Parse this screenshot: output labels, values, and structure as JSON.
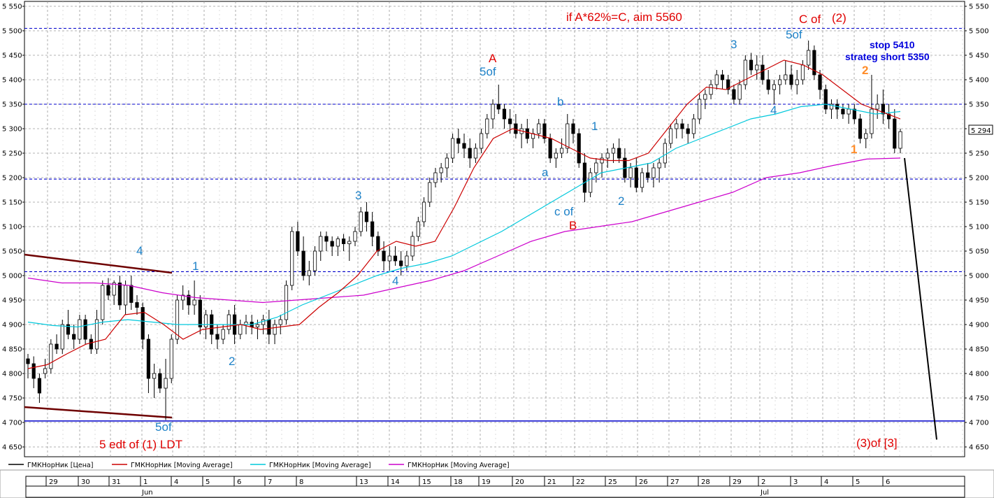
{
  "chart_data": {
    "type": "candlestick",
    "instrument": "ГМКНорНик",
    "last_price_label": "5 294",
    "ylim": [
      4630,
      5560
    ],
    "y_ticks": [
      "4 650",
      "4 700",
      "4 750",
      "4 800",
      "4 850",
      "4 900",
      "4 950",
      "5 000",
      "5 050",
      "5 100",
      "5 150",
      "5 200",
      "5 250",
      "5 300",
      "5 350",
      "5 400",
      "5 450",
      "5 500",
      "5 550"
    ],
    "x_dates": [
      "29",
      "30",
      "31",
      "1",
      "4",
      "5",
      "6",
      "7",
      "8",
      "13",
      "14",
      "15",
      "18",
      "19",
      "20",
      "21",
      "22",
      "25",
      "26",
      "27",
      "28",
      "29",
      "2",
      "3",
      "4",
      "5",
      "6"
    ],
    "month_labels": [
      "Jun",
      "Jul"
    ],
    "horizontal_levels": [
      {
        "value": 5505,
        "style": "dashed",
        "color": "#0000cc"
      },
      {
        "value": 5350,
        "style": "dashed",
        "color": "#0000cc"
      },
      {
        "value": 5197,
        "style": "dashed",
        "color": "#0000cc"
      },
      {
        "value": 5008,
        "style": "dashed",
        "color": "#0000cc"
      },
      {
        "value": 4703,
        "style": "solid",
        "color": "#0000cc"
      }
    ],
    "legend": [
      {
        "label": "ГМКНорНик [Цена]",
        "color": "#000000"
      },
      {
        "label": "ГМКНорНик [Moving Average]",
        "color": "#cc0000"
      },
      {
        "label": "ГМКНорНик [Moving Average]",
        "color": "#00c8dc"
      },
      {
        "label": "ГМКНорНик [Moving Average]",
        "color": "#cc00cc"
      }
    ],
    "annotations": [
      {
        "text": "if A*62%=C, aim 5560",
        "color": "#e00000"
      },
      {
        "text": "C of",
        "color": "#e00000"
      },
      {
        "text": "(2)",
        "color": "#e00000"
      },
      {
        "text": "stop 5410",
        "color": "#0000dd"
      },
      {
        "text": "strateg short 5350",
        "color": "#0000dd"
      },
      {
        "text": "A",
        "color": "#e00000"
      },
      {
        "text": "5of",
        "color": "#1e82c8"
      },
      {
        "text": "5of",
        "color": "#1e82c8"
      },
      {
        "text": "3",
        "color": "#1e82c8"
      },
      {
        "text": "3",
        "color": "#1e82c8"
      },
      {
        "text": "b",
        "color": "#1e82c8"
      },
      {
        "text": "1",
        "color": "#1e82c8"
      },
      {
        "text": "a",
        "color": "#1e82c8"
      },
      {
        "text": "c of",
        "color": "#1e82c8"
      },
      {
        "text": "B",
        "color": "#e00000"
      },
      {
        "text": "2",
        "color": "#1e82c8"
      },
      {
        "text": "4",
        "color": "#1e82c8"
      },
      {
        "text": "4",
        "color": "#1e82c8"
      },
      {
        "text": "4",
        "color": "#1e82c8"
      },
      {
        "text": "1",
        "color": "#1e82c8"
      },
      {
        "text": "2",
        "color": "#1e82c8"
      },
      {
        "text": "2",
        "color": "#ff8c28"
      },
      {
        "text": "1",
        "color": "#ff8c28"
      },
      {
        "text": "5of",
        "color": "#1e82c8"
      },
      {
        "text": "5 edt of (1) LDT",
        "color": "#e00000"
      },
      {
        "text": "(3)of [3]",
        "color": "#e00000"
      }
    ],
    "ma_red": [
      [
        0,
        4810
      ],
      [
        1,
        4818
      ],
      [
        2,
        4840
      ],
      [
        3,
        4860
      ],
      [
        4,
        4870
      ],
      [
        5,
        4920
      ],
      [
        6,
        4925
      ],
      [
        7,
        4900
      ],
      [
        8,
        4870
      ],
      [
        9,
        4890
      ],
      [
        10,
        4895
      ],
      [
        11,
        4900
      ],
      [
        12,
        4890
      ],
      [
        13,
        4895
      ],
      [
        14,
        4900
      ],
      [
        15,
        4935
      ],
      [
        16,
        4965
      ],
      [
        17,
        5000
      ],
      [
        18,
        5050
      ],
      [
        19,
        5070
      ],
      [
        20,
        5060
      ],
      [
        21,
        5070
      ],
      [
        22,
        5140
      ],
      [
        23,
        5220
      ],
      [
        24,
        5280
      ],
      [
        25,
        5300
      ],
      [
        26,
        5290
      ],
      [
        27,
        5280
      ],
      [
        28,
        5260
      ],
      [
        29,
        5240
      ],
      [
        30,
        5235
      ],
      [
        31,
        5235
      ],
      [
        32,
        5250
      ],
      [
        33,
        5300
      ],
      [
        34,
        5350
      ],
      [
        35,
        5385
      ],
      [
        36,
        5380
      ],
      [
        37,
        5400
      ],
      [
        38,
        5420
      ],
      [
        39,
        5440
      ],
      [
        40,
        5430
      ],
      [
        41,
        5410
      ],
      [
        42,
        5380
      ],
      [
        43,
        5350
      ],
      [
        44,
        5335
      ],
      [
        45,
        5320
      ]
    ],
    "ma_cyan": [
      [
        0,
        4905
      ],
      [
        1,
        4898
      ],
      [
        2,
        4895
      ],
      [
        3,
        4905
      ],
      [
        4,
        4910
      ],
      [
        5,
        4905
      ],
      [
        6,
        4900
      ],
      [
        7,
        4900
      ],
      [
        8,
        4900
      ],
      [
        9,
        4900
      ],
      [
        10,
        4915
      ],
      [
        11,
        4940
      ],
      [
        12,
        4960
      ],
      [
        13,
        4980
      ],
      [
        14,
        5000
      ],
      [
        15,
        5015
      ],
      [
        16,
        5025
      ],
      [
        17,
        5040
      ],
      [
        18,
        5065
      ],
      [
        19,
        5090
      ],
      [
        20,
        5120
      ],
      [
        21,
        5150
      ],
      [
        22,
        5180
      ],
      [
        23,
        5210
      ],
      [
        24,
        5220
      ],
      [
        25,
        5230
      ],
      [
        26,
        5260
      ],
      [
        27,
        5280
      ],
      [
        28,
        5300
      ],
      [
        29,
        5320
      ],
      [
        30,
        5330
      ],
      [
        31,
        5345
      ],
      [
        32,
        5350
      ],
      [
        33,
        5340
      ],
      [
        34,
        5330
      ],
      [
        35,
        5335
      ]
    ],
    "ma_mag": [
      [
        0,
        4995
      ],
      [
        1,
        4985
      ],
      [
        2,
        4985
      ],
      [
        3,
        4980
      ],
      [
        4,
        4965
      ],
      [
        5,
        4955
      ],
      [
        6,
        4950
      ],
      [
        7,
        4945
      ],
      [
        8,
        4950
      ],
      [
        9,
        4955
      ],
      [
        10,
        4960
      ],
      [
        11,
        4975
      ],
      [
        12,
        4990
      ],
      [
        13,
        5010
      ],
      [
        14,
        5040
      ],
      [
        15,
        5070
      ],
      [
        16,
        5090
      ],
      [
        17,
        5100
      ],
      [
        18,
        5110
      ],
      [
        19,
        5130
      ],
      [
        20,
        5150
      ],
      [
        21,
        5170
      ],
      [
        22,
        5200
      ],
      [
        23,
        5210
      ],
      [
        24,
        5225
      ],
      [
        25,
        5238
      ],
      [
        26,
        5240
      ]
    ],
    "candles": [
      [
        4830,
        4840,
        4790,
        4820
      ],
      [
        4820,
        4835,
        4770,
        4790
      ],
      [
        4790,
        4800,
        4740,
        4760
      ],
      [
        4800,
        4830,
        4790,
        4810
      ],
      [
        4810,
        4870,
        4800,
        4860
      ],
      [
        4860,
        4880,
        4840,
        4850
      ],
      [
        4850,
        4910,
        4840,
        4900
      ],
      [
        4900,
        4930,
        4870,
        4880
      ],
      [
        4880,
        4900,
        4850,
        4870
      ],
      [
        4870,
        4920,
        4860,
        4910
      ],
      [
        4910,
        4920,
        4860,
        4870
      ],
      [
        4870,
        4880,
        4840,
        4850
      ],
      [
        4850,
        4930,
        4840,
        4910
      ],
      [
        4910,
        4990,
        4900,
        4980
      ],
      [
        4980,
        4995,
        4950,
        4960
      ],
      [
        4960,
        4990,
        4940,
        4985
      ],
      [
        4985,
        5000,
        4930,
        4940
      ],
      [
        4940,
        4990,
        4920,
        4980
      ],
      [
        4980,
        5000,
        4930,
        4945
      ],
      [
        4945,
        4960,
        4920,
        4935
      ],
      [
        4935,
        4945,
        4850,
        4870
      ],
      [
        4870,
        4880,
        4760,
        4790
      ],
      [
        4790,
        4820,
        4750,
        4800
      ],
      [
        4800,
        4810,
        4760,
        4770
      ],
      [
        4770,
        4830,
        4705,
        4790
      ],
      [
        4790,
        4880,
        4780,
        4870
      ],
      [
        4870,
        4960,
        4860,
        4950
      ],
      [
        4950,
        4980,
        4930,
        4960
      ],
      [
        4960,
        4970,
        4920,
        4940
      ],
      [
        4940,
        4990,
        4920,
        4950
      ],
      [
        4950,
        4960,
        4880,
        4895
      ],
      [
        4895,
        4930,
        4870,
        4920
      ],
      [
        4920,
        4930,
        4860,
        4880
      ],
      [
        4880,
        4900,
        4850,
        4870
      ],
      [
        4870,
        4900,
        4860,
        4890
      ],
      [
        4890,
        4930,
        4880,
        4920
      ],
      [
        4920,
        4940,
        4860,
        4880
      ],
      [
        4880,
        4910,
        4870,
        4900
      ],
      [
        4900,
        4920,
        4880,
        4905
      ],
      [
        4905,
        4920,
        4880,
        4895
      ],
      [
        4895,
        4910,
        4870,
        4900
      ],
      [
        4900,
        4920,
        4880,
        4910
      ],
      [
        4910,
        4930,
        4860,
        4880
      ],
      [
        4880,
        4910,
        4860,
        4900
      ],
      [
        4900,
        4920,
        4880,
        4910
      ],
      [
        4910,
        4990,
        4900,
        4980
      ],
      [
        4980,
        5100,
        4970,
        5090
      ],
      [
        5090,
        5110,
        5040,
        5050
      ],
      [
        5050,
        5080,
        4990,
        5000
      ],
      [
        5000,
        5030,
        4980,
        5010
      ],
      [
        5010,
        5060,
        5000,
        5050
      ],
      [
        5050,
        5090,
        5030,
        5080
      ],
      [
        5080,
        5090,
        5050,
        5070
      ],
      [
        5070,
        5080,
        5040,
        5060
      ],
      [
        5060,
        5080,
        5040,
        5075
      ],
      [
        5075,
        5085,
        5050,
        5065
      ],
      [
        5065,
        5080,
        5030,
        5070
      ],
      [
        5070,
        5100,
        5060,
        5090
      ],
      [
        5090,
        5140,
        5080,
        5130
      ],
      [
        5130,
        5150,
        5090,
        5110
      ],
      [
        5110,
        5130,
        5060,
        5080
      ],
      [
        5080,
        5090,
        5040,
        5050
      ],
      [
        5050,
        5070,
        5010,
        5030
      ],
      [
        5030,
        5060,
        5010,
        5040
      ],
      [
        5040,
        5060,
        5020,
        5030
      ],
      [
        5030,
        5050,
        5000,
        5020
      ],
      [
        5020,
        5050,
        5010,
        5040
      ],
      [
        5040,
        5090,
        5030,
        5080
      ],
      [
        5080,
        5120,
        5070,
        5110
      ],
      [
        5110,
        5160,
        5100,
        5150
      ],
      [
        5150,
        5200,
        5140,
        5190
      ],
      [
        5190,
        5220,
        5180,
        5210
      ],
      [
        5210,
        5230,
        5190,
        5220
      ],
      [
        5220,
        5250,
        5200,
        5240
      ],
      [
        5240,
        5290,
        5230,
        5280
      ],
      [
        5280,
        5300,
        5250,
        5270
      ],
      [
        5270,
        5290,
        5240,
        5260
      ],
      [
        5260,
        5280,
        5220,
        5240
      ],
      [
        5240,
        5270,
        5230,
        5260
      ],
      [
        5260,
        5300,
        5250,
        5290
      ],
      [
        5290,
        5330,
        5280,
        5320
      ],
      [
        5320,
        5360,
        5300,
        5350
      ],
      [
        5350,
        5390,
        5330,
        5340
      ],
      [
        5340,
        5350,
        5300,
        5320
      ],
      [
        5320,
        5340,
        5290,
        5310
      ],
      [
        5310,
        5330,
        5280,
        5290
      ],
      [
        5290,
        5310,
        5260,
        5300
      ],
      [
        5300,
        5320,
        5270,
        5280
      ],
      [
        5280,
        5300,
        5260,
        5290
      ],
      [
        5290,
        5320,
        5280,
        5310
      ],
      [
        5310,
        5320,
        5270,
        5280
      ],
      [
        5280,
        5290,
        5230,
        5240
      ],
      [
        5240,
        5260,
        5220,
        5250
      ],
      [
        5250,
        5280,
        5240,
        5260
      ],
      [
        5260,
        5330,
        5250,
        5310
      ],
      [
        5310,
        5320,
        5270,
        5290
      ],
      [
        5290,
        5300,
        5220,
        5230
      ],
      [
        5230,
        5250,
        5150,
        5170
      ],
      [
        5170,
        5220,
        5160,
        5210
      ],
      [
        5210,
        5240,
        5190,
        5230
      ],
      [
        5230,
        5250,
        5200,
        5240
      ],
      [
        5240,
        5260,
        5220,
        5250
      ],
      [
        5250,
        5270,
        5230,
        5260
      ],
      [
        5260,
        5280,
        5230,
        5240
      ],
      [
        5240,
        5260,
        5190,
        5200
      ],
      [
        5200,
        5230,
        5180,
        5220
      ],
      [
        5220,
        5240,
        5170,
        5180
      ],
      [
        5180,
        5220,
        5170,
        5210
      ],
      [
        5210,
        5230,
        5190,
        5200
      ],
      [
        5200,
        5230,
        5180,
        5220
      ],
      [
        5220,
        5240,
        5190,
        5230
      ],
      [
        5230,
        5280,
        5220,
        5270
      ],
      [
        5270,
        5310,
        5260,
        5300
      ],
      [
        5300,
        5320,
        5280,
        5310
      ],
      [
        5310,
        5320,
        5280,
        5300
      ],
      [
        5300,
        5310,
        5270,
        5290
      ],
      [
        5290,
        5330,
        5280,
        5320
      ],
      [
        5320,
        5370,
        5310,
        5360
      ],
      [
        5360,
        5380,
        5340,
        5370
      ],
      [
        5370,
        5400,
        5360,
        5390
      ],
      [
        5390,
        5420,
        5380,
        5410
      ],
      [
        5410,
        5420,
        5380,
        5400
      ],
      [
        5400,
        5410,
        5370,
        5380
      ],
      [
        5380,
        5390,
        5350,
        5360
      ],
      [
        5360,
        5400,
        5350,
        5390
      ],
      [
        5390,
        5450,
        5380,
        5440
      ],
      [
        5440,
        5455,
        5410,
        5420
      ],
      [
        5420,
        5450,
        5400,
        5430
      ],
      [
        5430,
        5450,
        5390,
        5400
      ],
      [
        5400,
        5420,
        5370,
        5380
      ],
      [
        5380,
        5400,
        5350,
        5390
      ],
      [
        5390,
        5410,
        5370,
        5400
      ],
      [
        5400,
        5440,
        5390,
        5410
      ],
      [
        5410,
        5430,
        5380,
        5390
      ],
      [
        5390,
        5420,
        5370,
        5400
      ],
      [
        5400,
        5440,
        5390,
        5430
      ],
      [
        5430,
        5480,
        5420,
        5460
      ],
      [
        5460,
        5470,
        5400,
        5410
      ],
      [
        5410,
        5420,
        5360,
        5380
      ],
      [
        5380,
        5390,
        5330,
        5340
      ],
      [
        5340,
        5360,
        5320,
        5350
      ],
      [
        5350,
        5360,
        5320,
        5340
      ],
      [
        5340,
        5350,
        5320,
        5330
      ],
      [
        5330,
        5350,
        5310,
        5340
      ],
      [
        5340,
        5350,
        5310,
        5320
      ],
      [
        5320,
        5330,
        5270,
        5280
      ],
      [
        5280,
        5300,
        5260,
        5290
      ],
      [
        5290,
        5410,
        5280,
        5340
      ],
      [
        5340,
        5370,
        5320,
        5350
      ],
      [
        5350,
        5380,
        5310,
        5330
      ],
      [
        5330,
        5350,
        5300,
        5320
      ],
      [
        5320,
        5340,
        5250,
        5260
      ],
      [
        5260,
        5300,
        5250,
        5294
      ]
    ],
    "projection": [
      [
        5240,
        0
      ],
      [
        4665,
        1
      ]
    ]
  }
}
